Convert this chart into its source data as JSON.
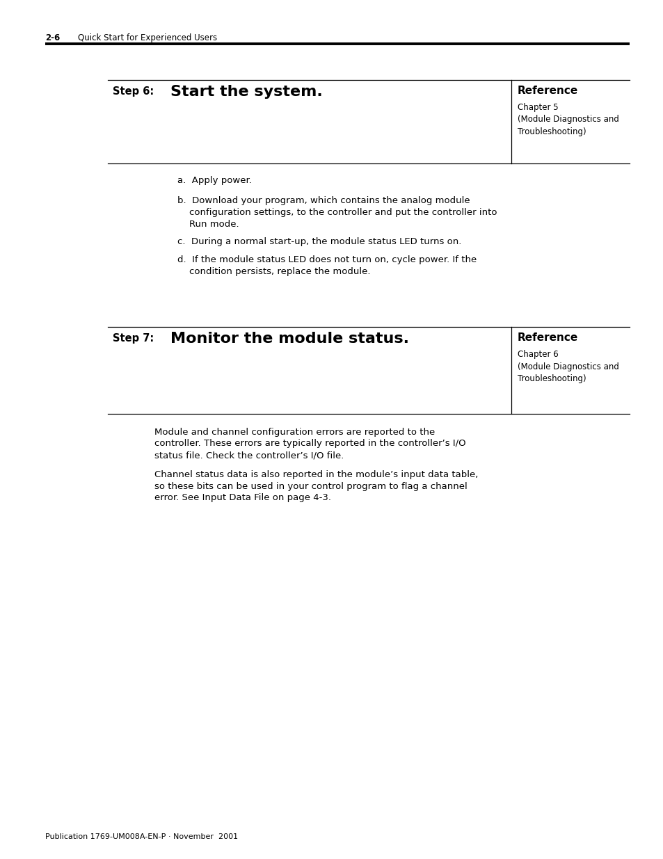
{
  "page_label": "2-6",
  "page_label_section": "Quick Start for Experienced Users",
  "footer_text": "Publication 1769-UM008A-EN-P · November  2001",
  "step6_label": "Step 6:",
  "step6_title": "Start the system.",
  "step6_ref_header": "Reference",
  "step6_ref_body": "Chapter 5\n(Module Diagnostics and\nTroubleshooting)",
  "step7_label": "Step 7:",
  "step7_title": "Monitor the module status.",
  "step7_ref_header": "Reference",
  "step7_ref_body": "Chapter 6\n(Module Diagnostics and\nTroubleshooting)",
  "step6_item_a": "a.  Apply power.",
  "step6_item_b1": "b.  Download your program, which contains the analog module",
  "step6_item_b2": "    configuration settings, to the controller and put the controller into",
  "step6_item_b3": "    Run mode.",
  "step6_item_c": "c.  During a normal start-up, the module status LED turns on.",
  "step6_item_d1": "d.  If the module status LED does not turn on, cycle power. If the",
  "step6_item_d2": "    condition persists, replace the module.",
  "step7_body1_l1": "Module and channel configuration errors are reported to the",
  "step7_body1_l2": "controller. These errors are typically reported in the controller’s I/O",
  "step7_body1_l3": "status file. Check the controller’s I/O file.",
  "step7_body2_l1": "Channel status data is also reported in the module’s input data table,",
  "step7_body2_l2": "so these bits can be used in your control program to flag a channel",
  "step7_body2_l3": "error. See Input Data File on page 4-3.",
  "bg_color": "#ffffff",
  "text_color": "#000000",
  "line_color": "#000000"
}
